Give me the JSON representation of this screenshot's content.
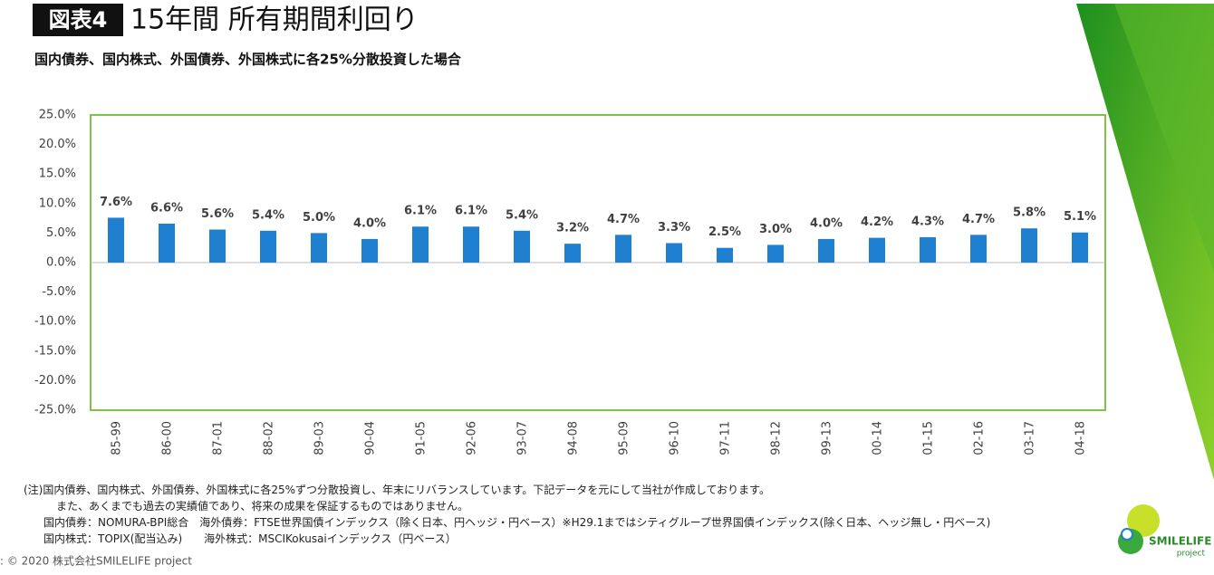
{
  "chart_data": {
    "type": "bar",
    "badge": "図表4",
    "title": "15年間 所有期間利回り",
    "subtitle": "国内債券、国内株式、外国債券、外国株式に各25%分散投資した場合",
    "categories": [
      "85-99",
      "86-00",
      "87-01",
      "88-02",
      "89-03",
      "90-04",
      "91-05",
      "92-06",
      "93-07",
      "94-08",
      "95-09",
      "96-10",
      "97-11",
      "98-12",
      "99-13",
      "00-14",
      "01-15",
      "02-16",
      "03-17",
      "04-18"
    ],
    "values": [
      7.6,
      6.6,
      5.6,
      5.4,
      5.0,
      4.0,
      6.1,
      6.1,
      5.4,
      3.2,
      4.7,
      3.3,
      2.5,
      3.0,
      4.0,
      4.2,
      4.3,
      4.7,
      5.8,
      5.1
    ],
    "value_labels": [
      "7.6%",
      "6.6%",
      "5.6%",
      "5.4%",
      "5.0%",
      "4.0%",
      "6.1%",
      "6.1%",
      "5.4%",
      "3.2%",
      "4.7%",
      "3.3%",
      "2.5%",
      "3.0%",
      "4.0%",
      "4.2%",
      "4.3%",
      "4.7%",
      "5.8%",
      "5.1%"
    ],
    "color": "#1f7fd0",
    "ylim": [
      -25,
      25
    ],
    "yticks": [
      {
        "value": 25,
        "label": "25.0%"
      },
      {
        "value": 20,
        "label": "20.0%"
      },
      {
        "value": 15,
        "label": "15.0%"
      },
      {
        "value": 10,
        "label": "10.0%"
      },
      {
        "value": 5,
        "label": "5.0%"
      },
      {
        "value": 0,
        "label": "0.0%"
      },
      {
        "value": -5,
        "label": "-5.0%"
      },
      {
        "value": -10,
        "label": "-10.0%"
      },
      {
        "value": -15,
        "label": "-15.0%"
      },
      {
        "value": -20,
        "label": "-20.0%"
      },
      {
        "value": -25,
        "label": "-25.0%"
      }
    ],
    "grid": false,
    "notes": [
      "(注)国内債券、国内株式、外国債券、外国株式に各25%ずつ分散投資し、年末にリバランスしています。下記データを元にして当社が作成しております。",
      "また、あくまでも過去の実績値であり、将来の成果を保証するものではありません。",
      "国内債券：NOMURA-BPI総合　海外債券：FTSE世界国債インデックス（除く日本、円ヘッジ・円ベース）※H29.1まではシティグループ世界国債インデックス(除く日本、ヘッジ無し・円ベース)",
      "国内株式：TOPIX(配当込み)　　海外株式：MSCIKokusaiインデックス（円ベース）"
    ],
    "copyright": ": © 2020 株式会社SMILELIFE project",
    "logo": [
      "SMILELIFE",
      "project"
    ]
  }
}
